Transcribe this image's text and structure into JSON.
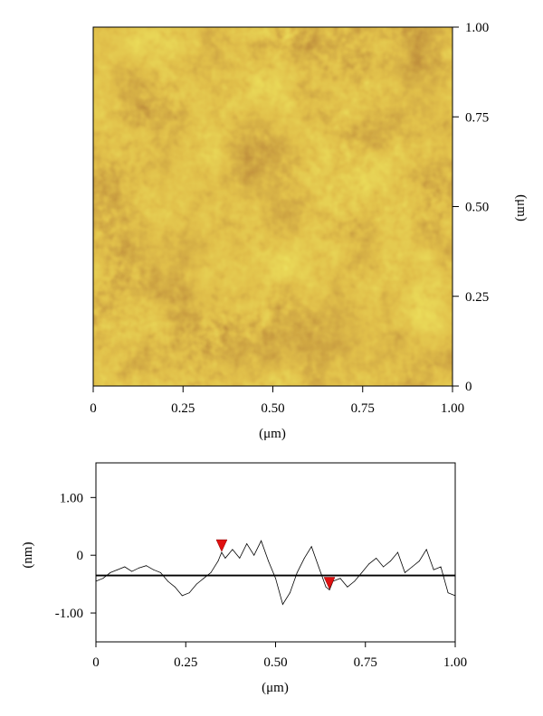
{
  "chart_data": [
    {
      "type": "heatmap",
      "title": "",
      "colormap": [
        "#7a2c05",
        "#b5560f",
        "#cf8f12",
        "#d9b81e",
        "#d8cf3a"
      ],
      "x": {
        "label": "(μm)",
        "range": [
          0,
          1
        ],
        "ticks": [
          0,
          0.25,
          0.5,
          0.75,
          1.0
        ],
        "tick_labels": [
          "0",
          "0.25",
          "0.50",
          "0.75",
          "1.00"
        ]
      },
      "y": {
        "label": "(μm)",
        "range": [
          0,
          1
        ],
        "ticks": [
          0,
          0.25,
          0.5,
          0.75,
          1.0
        ],
        "tick_labels": [
          "0",
          "0.25",
          "0.50",
          "0.75",
          "1.00"
        ],
        "side": "right"
      },
      "grid": false
    },
    {
      "type": "line",
      "title": "",
      "x": {
        "label": "(μm)",
        "range": [
          0,
          1
        ],
        "ticks": [
          0,
          0.25,
          0.5,
          0.75,
          1.0
        ],
        "tick_labels": [
          "0",
          "0.25",
          "0.50",
          "0.75",
          "1.00"
        ]
      },
      "y": {
        "label": "(nm)",
        "range": [
          -1.5,
          1.6
        ],
        "ticks": [
          1.0,
          0,
          -1.0
        ],
        "tick_labels": [
          "1.00",
          "0",
          "-1.00"
        ]
      },
      "baseline": -0.35,
      "grid": false,
      "series": [
        {
          "color": "#000000",
          "x": [
            0.0,
            0.02,
            0.04,
            0.06,
            0.08,
            0.1,
            0.12,
            0.14,
            0.16,
            0.18,
            0.2,
            0.22,
            0.24,
            0.26,
            0.28,
            0.3,
            0.32,
            0.34,
            0.35,
            0.36,
            0.38,
            0.4,
            0.42,
            0.44,
            0.46,
            0.48,
            0.5,
            0.52,
            0.54,
            0.56,
            0.58,
            0.6,
            0.62,
            0.64,
            0.65,
            0.66,
            0.68,
            0.7,
            0.72,
            0.74,
            0.76,
            0.78,
            0.8,
            0.82,
            0.84,
            0.86,
            0.88,
            0.9,
            0.92,
            0.94,
            0.96,
            0.98,
            1.0
          ],
          "y": [
            -0.45,
            -0.4,
            -0.3,
            -0.25,
            -0.2,
            -0.28,
            -0.22,
            -0.18,
            -0.25,
            -0.3,
            -0.45,
            -0.55,
            -0.7,
            -0.65,
            -0.5,
            -0.4,
            -0.3,
            -0.1,
            0.05,
            -0.05,
            0.1,
            -0.05,
            0.2,
            0.0,
            0.25,
            -0.1,
            -0.4,
            -0.85,
            -0.65,
            -0.3,
            -0.05,
            0.15,
            -0.2,
            -0.55,
            -0.6,
            -0.45,
            -0.4,
            -0.55,
            -0.45,
            -0.3,
            -0.15,
            -0.05,
            -0.2,
            -0.1,
            0.05,
            -0.3,
            -0.2,
            -0.1,
            0.1,
            -0.25,
            -0.2,
            -0.65,
            -0.7
          ]
        }
      ],
      "markers": [
        {
          "x": 0.35,
          "y": 0.05,
          "color": "#e01010"
        },
        {
          "x": 0.65,
          "y": -0.6,
          "color": "#e01010"
        }
      ]
    }
  ]
}
